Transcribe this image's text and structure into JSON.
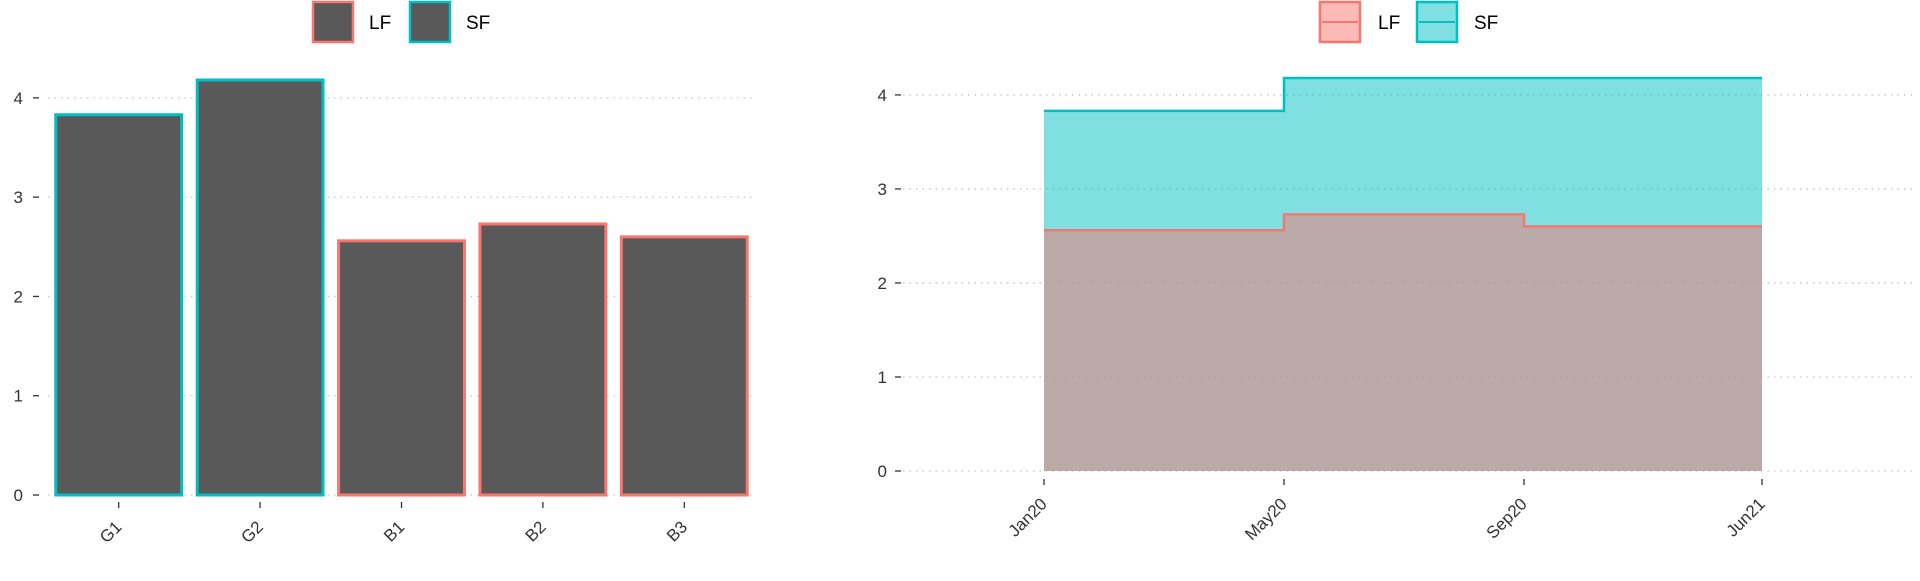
{
  "colors": {
    "LF": "#F8766D",
    "SF": "#00BFC4",
    "bar_fill": "#595959"
  },
  "chart_data": [
    {
      "type": "bar",
      "categories": [
        "G1",
        "G2",
        "B1",
        "B2",
        "B3"
      ],
      "values": [
        3.83,
        4.18,
        2.56,
        2.73,
        2.6
      ],
      "groups": [
        "SF",
        "SF",
        "LF",
        "LF",
        "LF"
      ],
      "legend": [
        "LF",
        "SF"
      ],
      "legend_position": "top",
      "ylim": [
        0,
        4.18
      ],
      "yticks": [
        0,
        1,
        2,
        3,
        4
      ],
      "grid": "horizontal-dotted",
      "xlabel": "",
      "ylabel": "",
      "title": ""
    },
    {
      "type": "area",
      "step": true,
      "x": [
        "Jan20",
        "May20",
        "Sep20",
        "Jun21"
      ],
      "xticks": [
        "Jan20",
        "May20",
        "Sep20",
        "Jun21"
      ],
      "series": [
        {
          "name": "LF",
          "values": [
            2.56,
            2.73,
            2.6,
            2.6
          ]
        },
        {
          "name": "SF",
          "values": [
            3.83,
            4.18,
            4.18,
            null
          ]
        }
      ],
      "legend": [
        "LF",
        "SF"
      ],
      "legend_position": "top",
      "ylim": [
        0,
        4.18
      ],
      "yticks": [
        0,
        1,
        2,
        3,
        4
      ],
      "grid": "horizontal-dotted",
      "xlabel": "",
      "ylabel": "",
      "title": ""
    }
  ]
}
